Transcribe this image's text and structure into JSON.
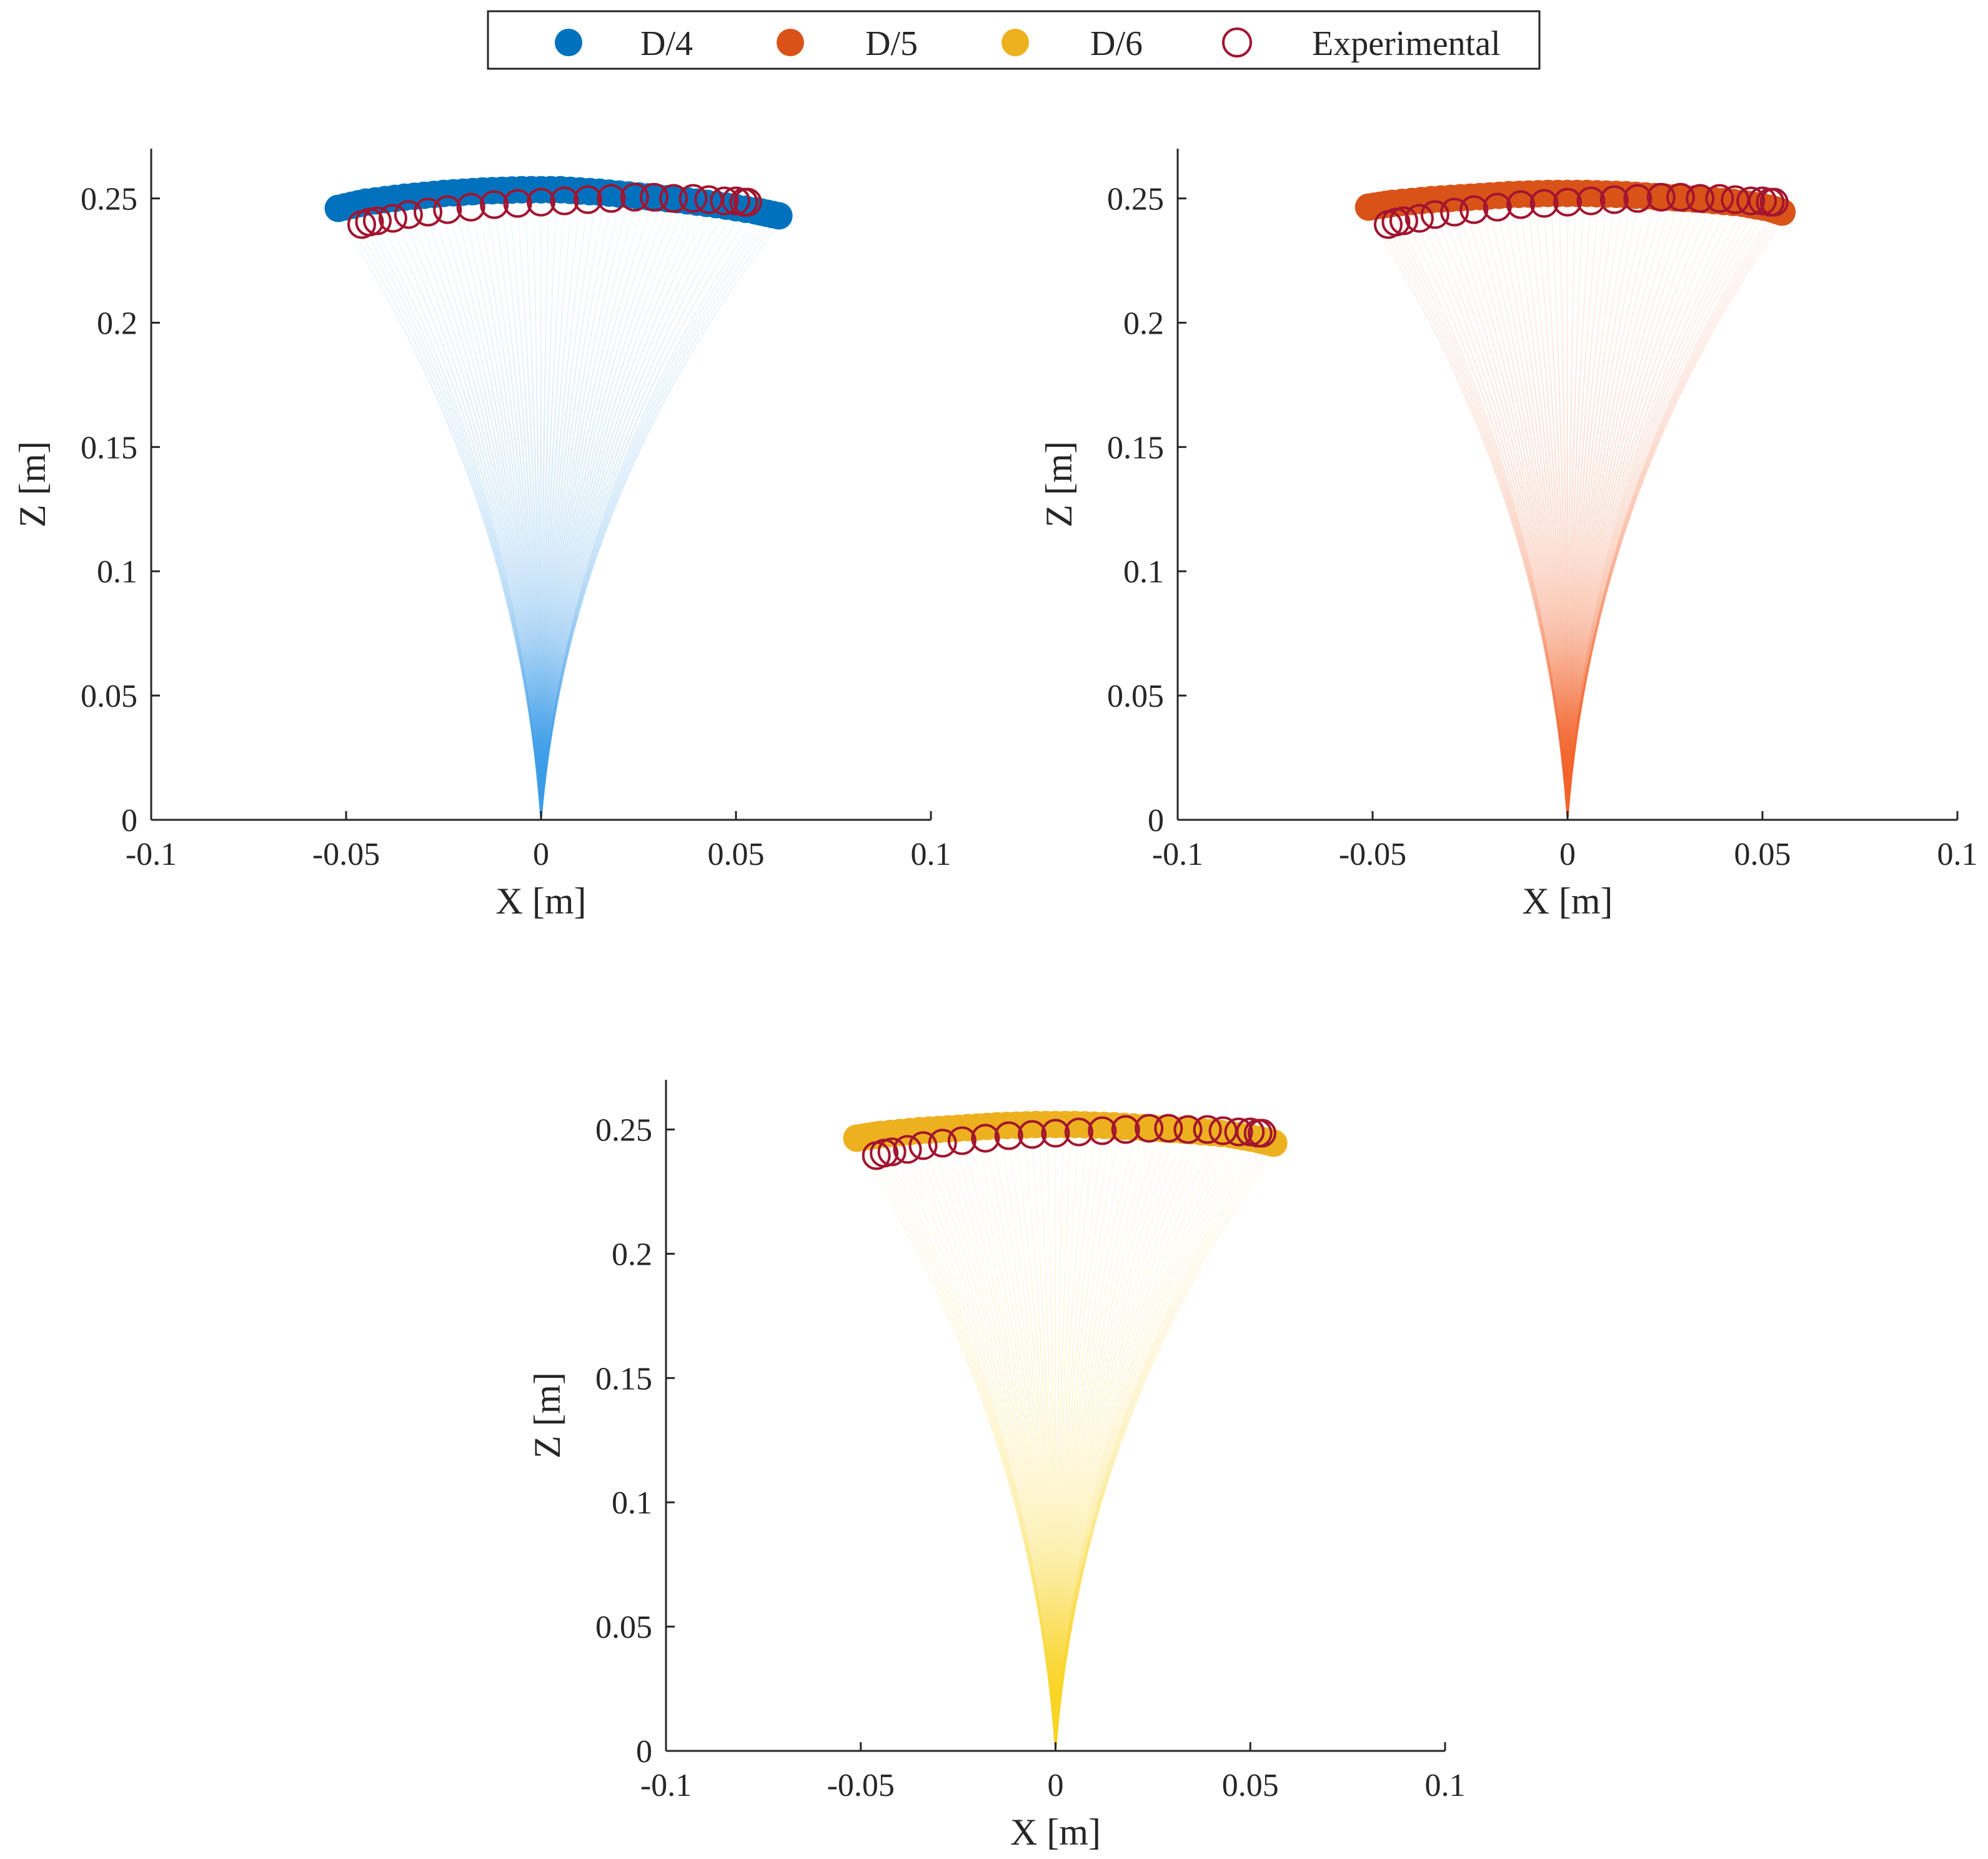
{
  "legend": {
    "placement": "top-center",
    "entries": [
      {
        "label": "D/4",
        "color": "#0072BD",
        "marker": "filled-circle"
      },
      {
        "label": "D/5",
        "color": "#D95319",
        "marker": "filled-circle"
      },
      {
        "label": "D/6",
        "color": "#EDB120",
        "marker": "filled-circle"
      },
      {
        "label": "Experimental",
        "color": "#A2142F",
        "marker": "open-circle"
      }
    ]
  },
  "chart_data": [
    {
      "type": "scatter",
      "title": "",
      "xlabel": "X [m]",
      "ylabel": "Z [m]",
      "xlim": [
        -0.1,
        0.1
      ],
      "ylim": [
        0,
        0.27
      ],
      "xticks": [
        "-0.1",
        "-0.05",
        "0",
        "0.05",
        "0.1"
      ],
      "yticks": [
        "0",
        "0.05",
        "0.1",
        "0.15",
        "0.2",
        "0.25"
      ],
      "grid": false,
      "base_point": [
        0,
        0
      ],
      "series": [
        {
          "name": "D/4",
          "color": "#0072BD",
          "fan_tip_color": "#3A9BE8",
          "fan_fade_color": "#C9E4F7",
          "x": [
            -0.052,
            -0.045,
            -0.035,
            -0.025,
            -0.015,
            -0.005,
            0.005,
            0.015,
            0.025,
            0.035,
            0.045,
            0.055,
            0.061
          ],
          "y": [
            0.246,
            0.2485,
            0.2505,
            0.252,
            0.253,
            0.2535,
            0.2535,
            0.2525,
            0.251,
            0.2495,
            0.2475,
            0.245,
            0.243
          ]
        },
        {
          "name": "Experimental",
          "color": "#A2142F",
          "x": [
            -0.046,
            -0.044,
            -0.042,
            -0.038,
            -0.034,
            -0.029,
            -0.024,
            -0.018,
            -0.012,
            -0.006,
            0.0,
            0.006,
            0.012,
            0.018,
            0.024,
            0.029,
            0.034,
            0.039,
            0.043,
            0.047,
            0.05,
            0.052,
            0.053
          ],
          "y": [
            0.2395,
            0.2405,
            0.241,
            0.242,
            0.2435,
            0.2445,
            0.2455,
            0.2465,
            0.2475,
            0.248,
            0.2485,
            0.249,
            0.2495,
            0.25,
            0.2505,
            0.2505,
            0.25,
            0.25,
            0.2495,
            0.249,
            0.249,
            0.2485,
            0.2485
          ]
        }
      ]
    },
    {
      "type": "scatter",
      "title": "",
      "xlabel": "X [m]",
      "ylabel": "Z [m]",
      "xlim": [
        -0.1,
        0.1
      ],
      "ylim": [
        0,
        0.27
      ],
      "xticks": [
        "-0.1",
        "-0.05",
        "0",
        "0.05",
        "0.1"
      ],
      "yticks": [
        "0",
        "0.05",
        "0.1",
        "0.15",
        "0.2",
        "0.25"
      ],
      "grid": false,
      "base_point": [
        0,
        0
      ],
      "series": [
        {
          "name": "D/5",
          "color": "#D95319",
          "fan_tip_color": "#F2622A",
          "fan_fade_color": "#FBD3C6",
          "x": [
            -0.051,
            -0.045,
            -0.035,
            -0.025,
            -0.015,
            -0.005,
            0.005,
            0.015,
            0.025,
            0.035,
            0.045,
            0.052,
            0.055
          ],
          "y": [
            0.2465,
            0.248,
            0.2495,
            0.2505,
            0.2515,
            0.252,
            0.252,
            0.2515,
            0.2505,
            0.2495,
            0.248,
            0.246,
            0.2445
          ]
        },
        {
          "name": "Experimental",
          "color": "#A2142F",
          "x": [
            -0.046,
            -0.044,
            -0.042,
            -0.038,
            -0.034,
            -0.029,
            -0.024,
            -0.018,
            -0.012,
            -0.006,
            0.0,
            0.006,
            0.012,
            0.018,
            0.024,
            0.029,
            0.034,
            0.039,
            0.043,
            0.047,
            0.05,
            0.052,
            0.053
          ],
          "y": [
            0.2395,
            0.2405,
            0.241,
            0.242,
            0.2435,
            0.2445,
            0.2455,
            0.2465,
            0.2475,
            0.248,
            0.2485,
            0.249,
            0.2495,
            0.25,
            0.2505,
            0.2505,
            0.25,
            0.25,
            0.2495,
            0.249,
            0.249,
            0.2485,
            0.2485
          ]
        }
      ]
    },
    {
      "type": "scatter",
      "title": "",
      "xlabel": "X [m]",
      "ylabel": "Z [m]",
      "xlim": [
        -0.1,
        0.1
      ],
      "ylim": [
        0,
        0.27
      ],
      "xticks": [
        "-0.1",
        "-0.05",
        "0",
        "0.05",
        "0.1"
      ],
      "yticks": [
        "0",
        "0.05",
        "0.1",
        "0.15",
        "0.2",
        "0.25"
      ],
      "grid": false,
      "base_point": [
        0,
        0
      ],
      "series": [
        {
          "name": "D/6",
          "color": "#EDB120",
          "fan_tip_color": "#F9D423",
          "fan_fade_color": "#FCE7C8",
          "x": [
            -0.051,
            -0.045,
            -0.035,
            -0.025,
            -0.015,
            -0.005,
            0.005,
            0.015,
            0.025,
            0.035,
            0.045,
            0.052,
            0.056
          ],
          "y": [
            0.2465,
            0.248,
            0.2495,
            0.2505,
            0.2515,
            0.252,
            0.252,
            0.2515,
            0.2505,
            0.2495,
            0.248,
            0.246,
            0.2445
          ]
        },
        {
          "name": "Experimental",
          "color": "#A2142F",
          "x": [
            -0.046,
            -0.044,
            -0.042,
            -0.038,
            -0.034,
            -0.029,
            -0.024,
            -0.018,
            -0.012,
            -0.006,
            0.0,
            0.006,
            0.012,
            0.018,
            0.024,
            0.029,
            0.034,
            0.039,
            0.043,
            0.047,
            0.05,
            0.052,
            0.053
          ],
          "y": [
            0.2395,
            0.2405,
            0.241,
            0.242,
            0.2435,
            0.2445,
            0.2455,
            0.2465,
            0.2475,
            0.248,
            0.2485,
            0.249,
            0.2495,
            0.25,
            0.2505,
            0.2505,
            0.25,
            0.25,
            0.2495,
            0.249,
            0.249,
            0.2485,
            0.2485
          ]
        }
      ]
    }
  ]
}
